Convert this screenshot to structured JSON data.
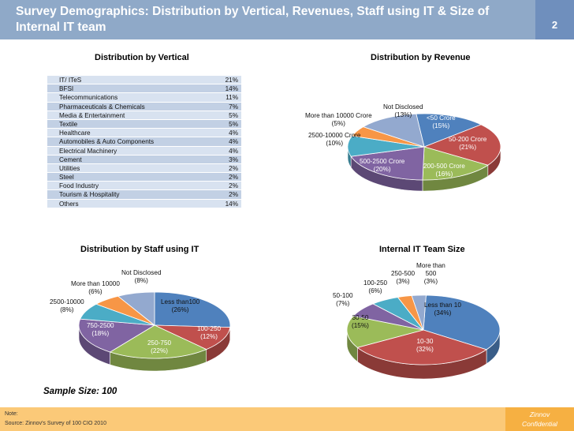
{
  "header": {
    "title": "Survey Demographics: Distribution by Vertical, Revenues, Staff using IT & Size of Internal IT team",
    "page_number": "2"
  },
  "vertical": {
    "title": "Distribution by Vertical",
    "rows": [
      {
        "name": "IT/ ITeS",
        "value": "21%"
      },
      {
        "name": "BFSI",
        "value": "14%"
      },
      {
        "name": "Telecommunications",
        "value": "11%"
      },
      {
        "name": "Pharmaceuticals & Chemicals",
        "value": "7%"
      },
      {
        "name": "Media & Entertainment",
        "value": "5%"
      },
      {
        "name": "Textile",
        "value": "5%"
      },
      {
        "name": "Healthcare",
        "value": "4%"
      },
      {
        "name": "Automobiles & Auto Components",
        "value": "4%"
      },
      {
        "name": "Electrical Machinery",
        "value": "4%"
      },
      {
        "name": "Cement",
        "value": "3%"
      },
      {
        "name": "Utilities",
        "value": "2%"
      },
      {
        "name": "Steel",
        "value": "2%"
      },
      {
        "name": "Food Industry",
        "value": "2%"
      },
      {
        "name": "Tourism & Hospitality",
        "value": "2%"
      },
      {
        "name": "Others",
        "value": "14%"
      }
    ]
  },
  "revenue": {
    "title": "Distribution by Revenue",
    "slices": [
      {
        "label": "<50 Crore",
        "pct": "(15%)",
        "value": 15,
        "color": "#4f81bd"
      },
      {
        "label": "50-200 Crore",
        "pct": "(21%)",
        "value": 21,
        "color": "#c0504d"
      },
      {
        "label": "200-500 Crore",
        "pct": "(16%)",
        "value": 16,
        "color": "#9bbb59"
      },
      {
        "label": "500-2500 Crore",
        "pct": "(20%)",
        "value": 20,
        "color": "#8064a2"
      },
      {
        "label": "2500-10000 Crore",
        "pct": "(10%)",
        "value": 10,
        "color": "#4bacc6"
      },
      {
        "label": "More than 10000 Crore",
        "pct": "(5%)",
        "value": 5,
        "color": "#f79646"
      },
      {
        "label": "Not Disclosed",
        "pct": "(13%)",
        "value": 13,
        "color": "#93a9cf"
      }
    ]
  },
  "staff": {
    "title": "Distribution by Staff using IT",
    "slices": [
      {
        "label": "Less than100",
        "pct": "(26%)",
        "value": 26,
        "color": "#4f81bd"
      },
      {
        "label": "100-250",
        "pct": "(12%)",
        "value": 12,
        "color": "#c0504d"
      },
      {
        "label": "250-750",
        "pct": "(22%)",
        "value": 22,
        "color": "#9bbb59"
      },
      {
        "label": "750-2500",
        "pct": "(18%)",
        "value": 18,
        "color": "#8064a2"
      },
      {
        "label": "2500-10000",
        "pct": "(8%)",
        "value": 8,
        "color": "#4bacc6"
      },
      {
        "label": "More than 10000",
        "pct": "(6%)",
        "value": 6,
        "color": "#f79646"
      },
      {
        "label": "Not Disclosed",
        "pct": "(8%)",
        "value": 8,
        "color": "#93a9cf"
      }
    ]
  },
  "team": {
    "title": "Internal IT Team Size",
    "slices": [
      {
        "label": "Less than 10",
        "pct": "(34%)",
        "value": 34,
        "color": "#4f81bd"
      },
      {
        "label": "10-30",
        "pct": "(32%)",
        "value": 32,
        "color": "#c0504d"
      },
      {
        "label": "30-50",
        "pct": "(15%)",
        "value": 15,
        "color": "#9bbb59"
      },
      {
        "label": "50-100",
        "pct": "(7%)",
        "value": 7,
        "color": "#8064a2"
      },
      {
        "label": "100-250",
        "pct": "(6%)",
        "value": 6,
        "color": "#4bacc6"
      },
      {
        "label": "250-500",
        "pct": "(3%)",
        "value": 3,
        "color": "#f79646"
      },
      {
        "label": "More than 500",
        "label_line1": "More than",
        "label_line2": "500",
        "pct": "(3%)",
        "value": 3,
        "color": "#93a9cf"
      }
    ]
  },
  "sample_size": "Sample Size: 100",
  "footer": {
    "note": "Note:",
    "source": "Source: Zinnov's Survey of 100 CIO 2010",
    "brand_line1": "Zinnov",
    "brand_line2": "Confidential"
  }
}
